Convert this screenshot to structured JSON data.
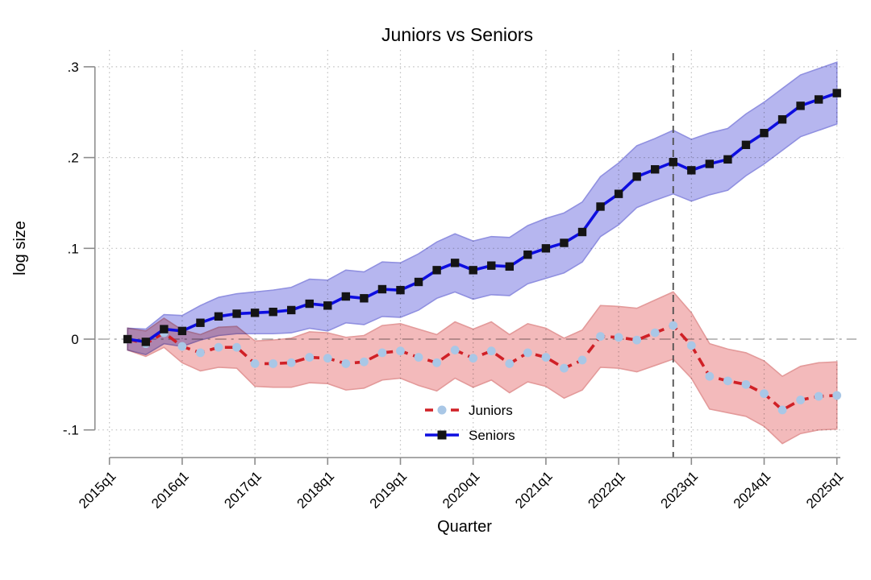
{
  "figure": {
    "title": "Juniors vs Seniors",
    "x_axis_title": "Quarter",
    "y_axis_title": "log size"
  },
  "chart_data": {
    "type": "line",
    "title": "Juniors vs Seniors",
    "xlabel": "Quarter",
    "ylabel": "log size",
    "ylim": [
      -0.13,
      0.32
    ],
    "grid": "dotted",
    "legend_position": "inside-bottom-center",
    "y_ticks": [
      {
        "v": 0.3,
        "label": ".3"
      },
      {
        "v": 0.2,
        "label": ".2"
      },
      {
        "v": 0.1,
        "label": ".1"
      },
      {
        "v": 0.0,
        "label": "0"
      },
      {
        "v": -0.1,
        "label": "-.1"
      }
    ],
    "x_ticks": [
      "2015q1",
      "2016q1",
      "2017q1",
      "2018q1",
      "2019q1",
      "2020q1",
      "2021q1",
      "2022q1",
      "2023q1",
      "2024q1",
      "2025q1"
    ],
    "x": [
      "2015q2",
      "2015q3",
      "2015q4",
      "2016q1",
      "2016q2",
      "2016q3",
      "2016q4",
      "2017q1",
      "2017q2",
      "2017q3",
      "2017q4",
      "2018q1",
      "2018q2",
      "2018q3",
      "2018q4",
      "2019q1",
      "2019q2",
      "2019q3",
      "2019q4",
      "2020q1",
      "2020q2",
      "2020q3",
      "2020q4",
      "2021q1",
      "2021q2",
      "2021q3",
      "2021q4",
      "2022q1",
      "2022q2",
      "2022q3",
      "2022q4",
      "2023q1",
      "2023q2",
      "2023q3",
      "2023q4",
      "2024q1",
      "2024q2",
      "2024q3",
      "2024q4",
      "2025q1"
    ],
    "reference_lines": {
      "horizontal_y": 0,
      "vertical_x": "2022q4"
    },
    "series": [
      {
        "name": "Juniors",
        "line_color": "#d02026",
        "line_style": "dashed",
        "marker": "circle",
        "marker_color": "#a9c7e6",
        "band_fill": "#f3babb",
        "band_edge": "#e39a9a",
        "values": [
          0.0,
          -0.005,
          0.007,
          -0.008,
          -0.015,
          -0.009,
          -0.009,
          -0.027,
          -0.027,
          -0.026,
          -0.02,
          -0.021,
          -0.027,
          -0.025,
          -0.015,
          -0.013,
          -0.02,
          -0.026,
          -0.012,
          -0.021,
          -0.013,
          -0.027,
          -0.015,
          -0.02,
          -0.032,
          -0.023,
          0.003,
          0.002,
          -0.001,
          0.007,
          0.015,
          -0.007,
          -0.041,
          -0.046,
          -0.05,
          -0.06,
          -0.078,
          -0.067,
          -0.063,
          -0.062
        ],
        "ci_halfwidth": [
          0.012,
          0.014,
          0.016,
          0.018,
          0.02,
          0.022,
          0.023,
          0.025,
          0.026,
          0.027,
          0.028,
          0.028,
          0.029,
          0.029,
          0.03,
          0.03,
          0.031,
          0.031,
          0.031,
          0.032,
          0.032,
          0.032,
          0.032,
          0.032,
          0.033,
          0.033,
          0.034,
          0.034,
          0.035,
          0.036,
          0.037,
          0.036,
          0.036,
          0.035,
          0.035,
          0.036,
          0.037,
          0.037,
          0.037,
          0.037
        ]
      },
      {
        "name": "Seniors",
        "line_color": "#0d0de0",
        "line_style": "solid",
        "marker": "square",
        "marker_color": "#141414",
        "band_fill": "#b6b6ef",
        "band_edge": "#9090e0",
        "values": [
          0.0,
          -0.003,
          0.011,
          0.009,
          0.018,
          0.025,
          0.028,
          0.029,
          0.03,
          0.032,
          0.039,
          0.037,
          0.047,
          0.045,
          0.055,
          0.054,
          0.063,
          0.076,
          0.084,
          0.076,
          0.081,
          0.08,
          0.093,
          0.1,
          0.106,
          0.118,
          0.146,
          0.16,
          0.179,
          0.187,
          0.195,
          0.186,
          0.193,
          0.198,
          0.214,
          0.227,
          0.242,
          0.257,
          0.264,
          0.271
        ],
        "ci_halfwidth": [
          0.012,
          0.014,
          0.016,
          0.017,
          0.019,
          0.021,
          0.022,
          0.023,
          0.024,
          0.025,
          0.027,
          0.028,
          0.029,
          0.029,
          0.03,
          0.03,
          0.031,
          0.031,
          0.032,
          0.032,
          0.032,
          0.032,
          0.032,
          0.033,
          0.033,
          0.033,
          0.033,
          0.034,
          0.034,
          0.034,
          0.035,
          0.034,
          0.034,
          0.034,
          0.034,
          0.034,
          0.034,
          0.034,
          0.034,
          0.034
        ]
      }
    ],
    "colors": {
      "grid": "#bfbfbf",
      "zero_line": "#a9a9a9",
      "event_line": "#4d4d4d",
      "axis": "#8c8c8c"
    }
  }
}
